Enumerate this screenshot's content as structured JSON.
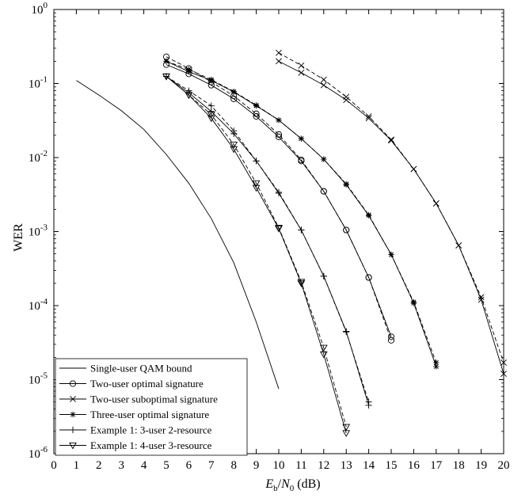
{
  "chart_data": {
    "type": "line",
    "xlabel_parts": {
      "e": "E",
      "b": "b",
      "slash": "/",
      "n": "N",
      "zero": "0",
      "unit": " (dB)"
    },
    "ylabel": "WER",
    "xlim": [
      0,
      20
    ],
    "ylim_exp": [
      -6,
      0
    ],
    "y_scale": "log",
    "x_ticks": [
      "0",
      "1",
      "2",
      "3",
      "4",
      "5",
      "6",
      "7",
      "8",
      "9",
      "10",
      "11",
      "12",
      "13",
      "14",
      "15",
      "16",
      "17",
      "18",
      "19",
      "20"
    ],
    "y_ticks": [
      {
        "base": "10",
        "exp": "0",
        "value": 1
      },
      {
        "base": "10",
        "exp": "-1",
        "value": 0.1
      },
      {
        "base": "10",
        "exp": "-2",
        "value": 0.01
      },
      {
        "base": "10",
        "exp": "-3",
        "value": 0.001
      },
      {
        "base": "10",
        "exp": "-4",
        "value": 0.0001
      },
      {
        "base": "10",
        "exp": "-5",
        "value": 1e-05
      },
      {
        "base": "10",
        "exp": "-6",
        "value": 1e-06
      }
    ],
    "legend_position": "bottom-left",
    "series": [
      {
        "name": "Single-user QAM bound",
        "marker": "none",
        "lines": [
          {
            "dash": false,
            "x": [
              1,
              2,
              3,
              4,
              5,
              6,
              7,
              8,
              9,
              10
            ],
            "y": [
              0.11,
              0.07,
              0.043,
              0.024,
              0.011,
              0.0045,
              0.0015,
              0.00038,
              6e-05,
              7.5e-06
            ]
          }
        ]
      },
      {
        "name": "Two-user optimal signature",
        "marker": "circle",
        "lines": [
          {
            "dash": false,
            "x": [
              5,
              6,
              7,
              8,
              9,
              10,
              11,
              12,
              13,
              14,
              15
            ],
            "y": [
              0.18,
              0.135,
              0.095,
              0.062,
              0.036,
              0.019,
              0.009,
              0.0035,
              0.00105,
              0.00024,
              3.8e-05
            ]
          },
          {
            "dash": true,
            "x": [
              5,
              6,
              7,
              8,
              9,
              10,
              11,
              12,
              13,
              14,
              15
            ],
            "y": [
              0.23,
              0.16,
              0.105,
              0.068,
              0.039,
              0.0205,
              0.0093,
              0.0035,
              0.00105,
              0.00024,
              3.4e-05
            ]
          }
        ]
      },
      {
        "name": "Two-user suboptimal signature",
        "marker": "x",
        "lines": [
          {
            "dash": false,
            "x": [
              10,
              11,
              12,
              13,
              14,
              15,
              16,
              17,
              18,
              19,
              20
            ],
            "y": [
              0.2,
              0.14,
              0.095,
              0.06,
              0.034,
              0.017,
              0.007,
              0.0024,
              0.00065,
              0.00012,
              1.2e-05
            ]
          },
          {
            "dash": true,
            "x": [
              10,
              11,
              12,
              13,
              14,
              15,
              16,
              17,
              18,
              19,
              20
            ],
            "y": [
              0.26,
              0.175,
              0.113,
              0.066,
              0.036,
              0.0175,
              0.007,
              0.0024,
              0.00065,
              0.00013,
              1.7e-05
            ]
          }
        ]
      },
      {
        "name": "Three-user optimal signature",
        "marker": "star",
        "lines": [
          {
            "dash": false,
            "x": [
              5,
              6,
              7,
              8,
              9,
              10,
              11,
              12,
              13,
              14,
              15,
              16,
              17
            ],
            "y": [
              0.2,
              0.145,
              0.11,
              0.077,
              0.05,
              0.032,
              0.018,
              0.0095,
              0.0043,
              0.00165,
              0.00049,
              0.000108,
              1.5e-05
            ]
          },
          {
            "dash": true,
            "x": [
              5,
              6,
              7,
              8,
              9,
              10,
              11,
              12,
              13,
              14,
              15,
              16,
              17
            ],
            "y": [
              0.2,
              0.155,
              0.113,
              0.078,
              0.051,
              0.032,
              0.018,
              0.0095,
              0.0044,
              0.00168,
              0.00049,
              0.000112,
              1.7e-05
            ]
          }
        ]
      },
      {
        "name": "Example 1: 3-user 2-resource",
        "marker": "plus",
        "lines": [
          {
            "dash": false,
            "x": [
              5,
              6,
              7,
              8,
              9,
              10,
              11,
              12,
              13,
              14
            ],
            "y": [
              0.125,
              0.075,
              0.042,
              0.021,
              0.009,
              0.0033,
              0.00105,
              0.00025,
              4.5e-05,
              4.5e-06
            ]
          },
          {
            "dash": true,
            "x": [
              5,
              6,
              7,
              8,
              9,
              10,
              11,
              12,
              13,
              14
            ],
            "y": [
              0.125,
              0.08,
              0.05,
              0.023,
              0.009,
              0.0034,
              0.00105,
              0.00025,
              4.4e-05,
              5e-06
            ]
          }
        ]
      },
      {
        "name": "Example 1: 4-user 3-resource",
        "marker": "triangle-down",
        "lines": [
          {
            "dash": false,
            "x": [
              5,
              6,
              7,
              8,
              9,
              10,
              11,
              12,
              13
            ],
            "y": [
              0.125,
              0.07,
              0.034,
              0.013,
              0.0039,
              0.0011,
              0.0002,
              2.2e-05,
              1.9e-06
            ]
          },
          {
            "dash": true,
            "x": [
              5,
              6,
              7,
              8,
              9,
              10,
              11,
              12,
              13
            ],
            "y": [
              0.125,
              0.07,
              0.038,
              0.015,
              0.0045,
              0.00113,
              0.00021,
              2.7e-05,
              2.3e-06
            ]
          }
        ]
      }
    ]
  }
}
